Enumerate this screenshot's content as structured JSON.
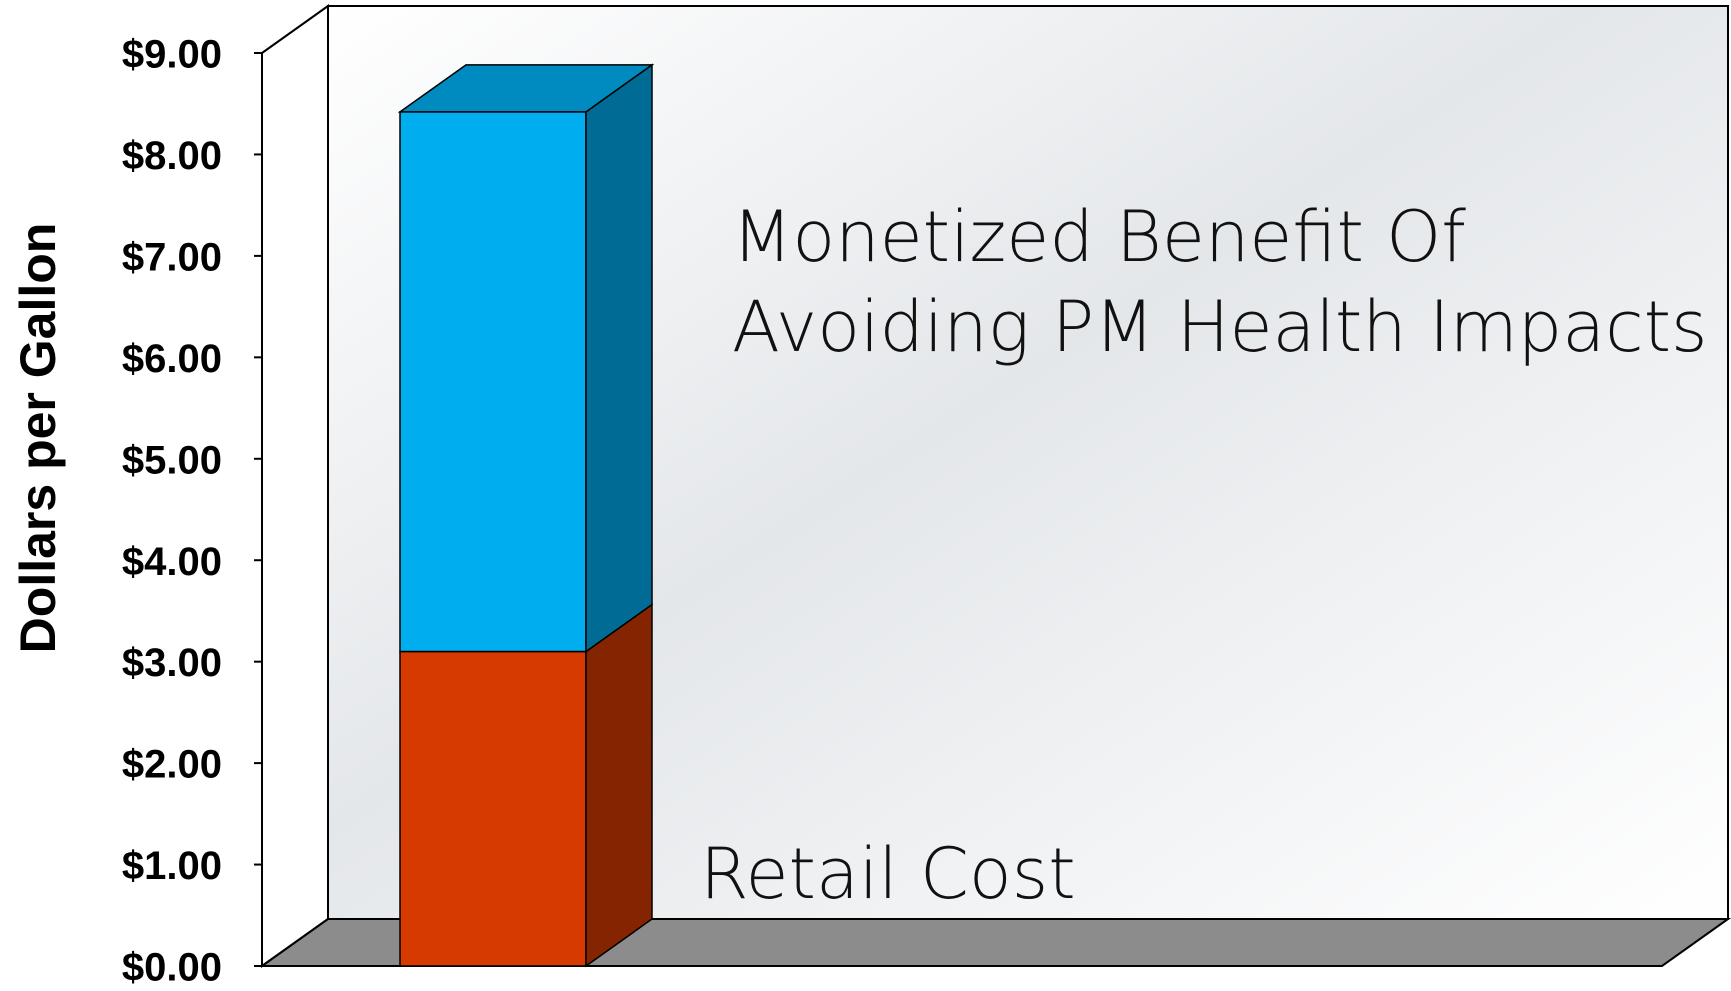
{
  "chart_data": {
    "type": "bar3d_stacked",
    "y_label": "Dollars per Gallon",
    "categories": [
      null
    ],
    "series": [
      {
        "name": "Retail Cost",
        "color": "#d63a00",
        "values": [
          3.1
        ]
      },
      {
        "name": "Monetized Benefit Of Avoiding PM Health Impacts",
        "color": "#00aef0",
        "values": [
          5.32
        ]
      }
    ],
    "ylim": [
      0,
      9
    ],
    "yticks": [
      {
        "value": 0,
        "label": "$0.00"
      },
      {
        "value": 1,
        "label": "$1.00"
      },
      {
        "value": 2,
        "label": "$2.00"
      },
      {
        "value": 3,
        "label": "$3.00"
      },
      {
        "value": 4,
        "label": "$4.00"
      },
      {
        "value": 5,
        "label": "$5.00"
      },
      {
        "value": 6,
        "label": "$6.00"
      },
      {
        "value": 7,
        "label": "$7.00"
      },
      {
        "value": 8,
        "label": "$8.00"
      },
      {
        "value": 9,
        "label": "$9.00"
      }
    ],
    "grid": false
  }
}
